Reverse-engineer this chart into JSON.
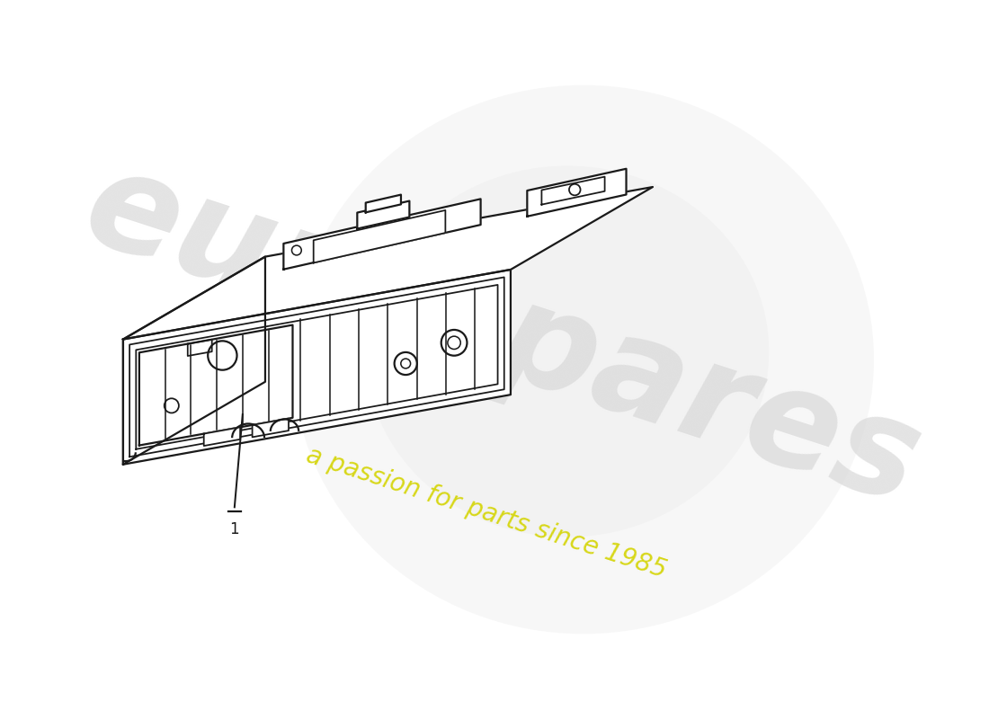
{
  "background_color": "#ffffff",
  "line_color": "#1a1a1a",
  "line_width": 1.6,
  "fig_width": 11.0,
  "fig_height": 8.0,
  "label_number": "1"
}
